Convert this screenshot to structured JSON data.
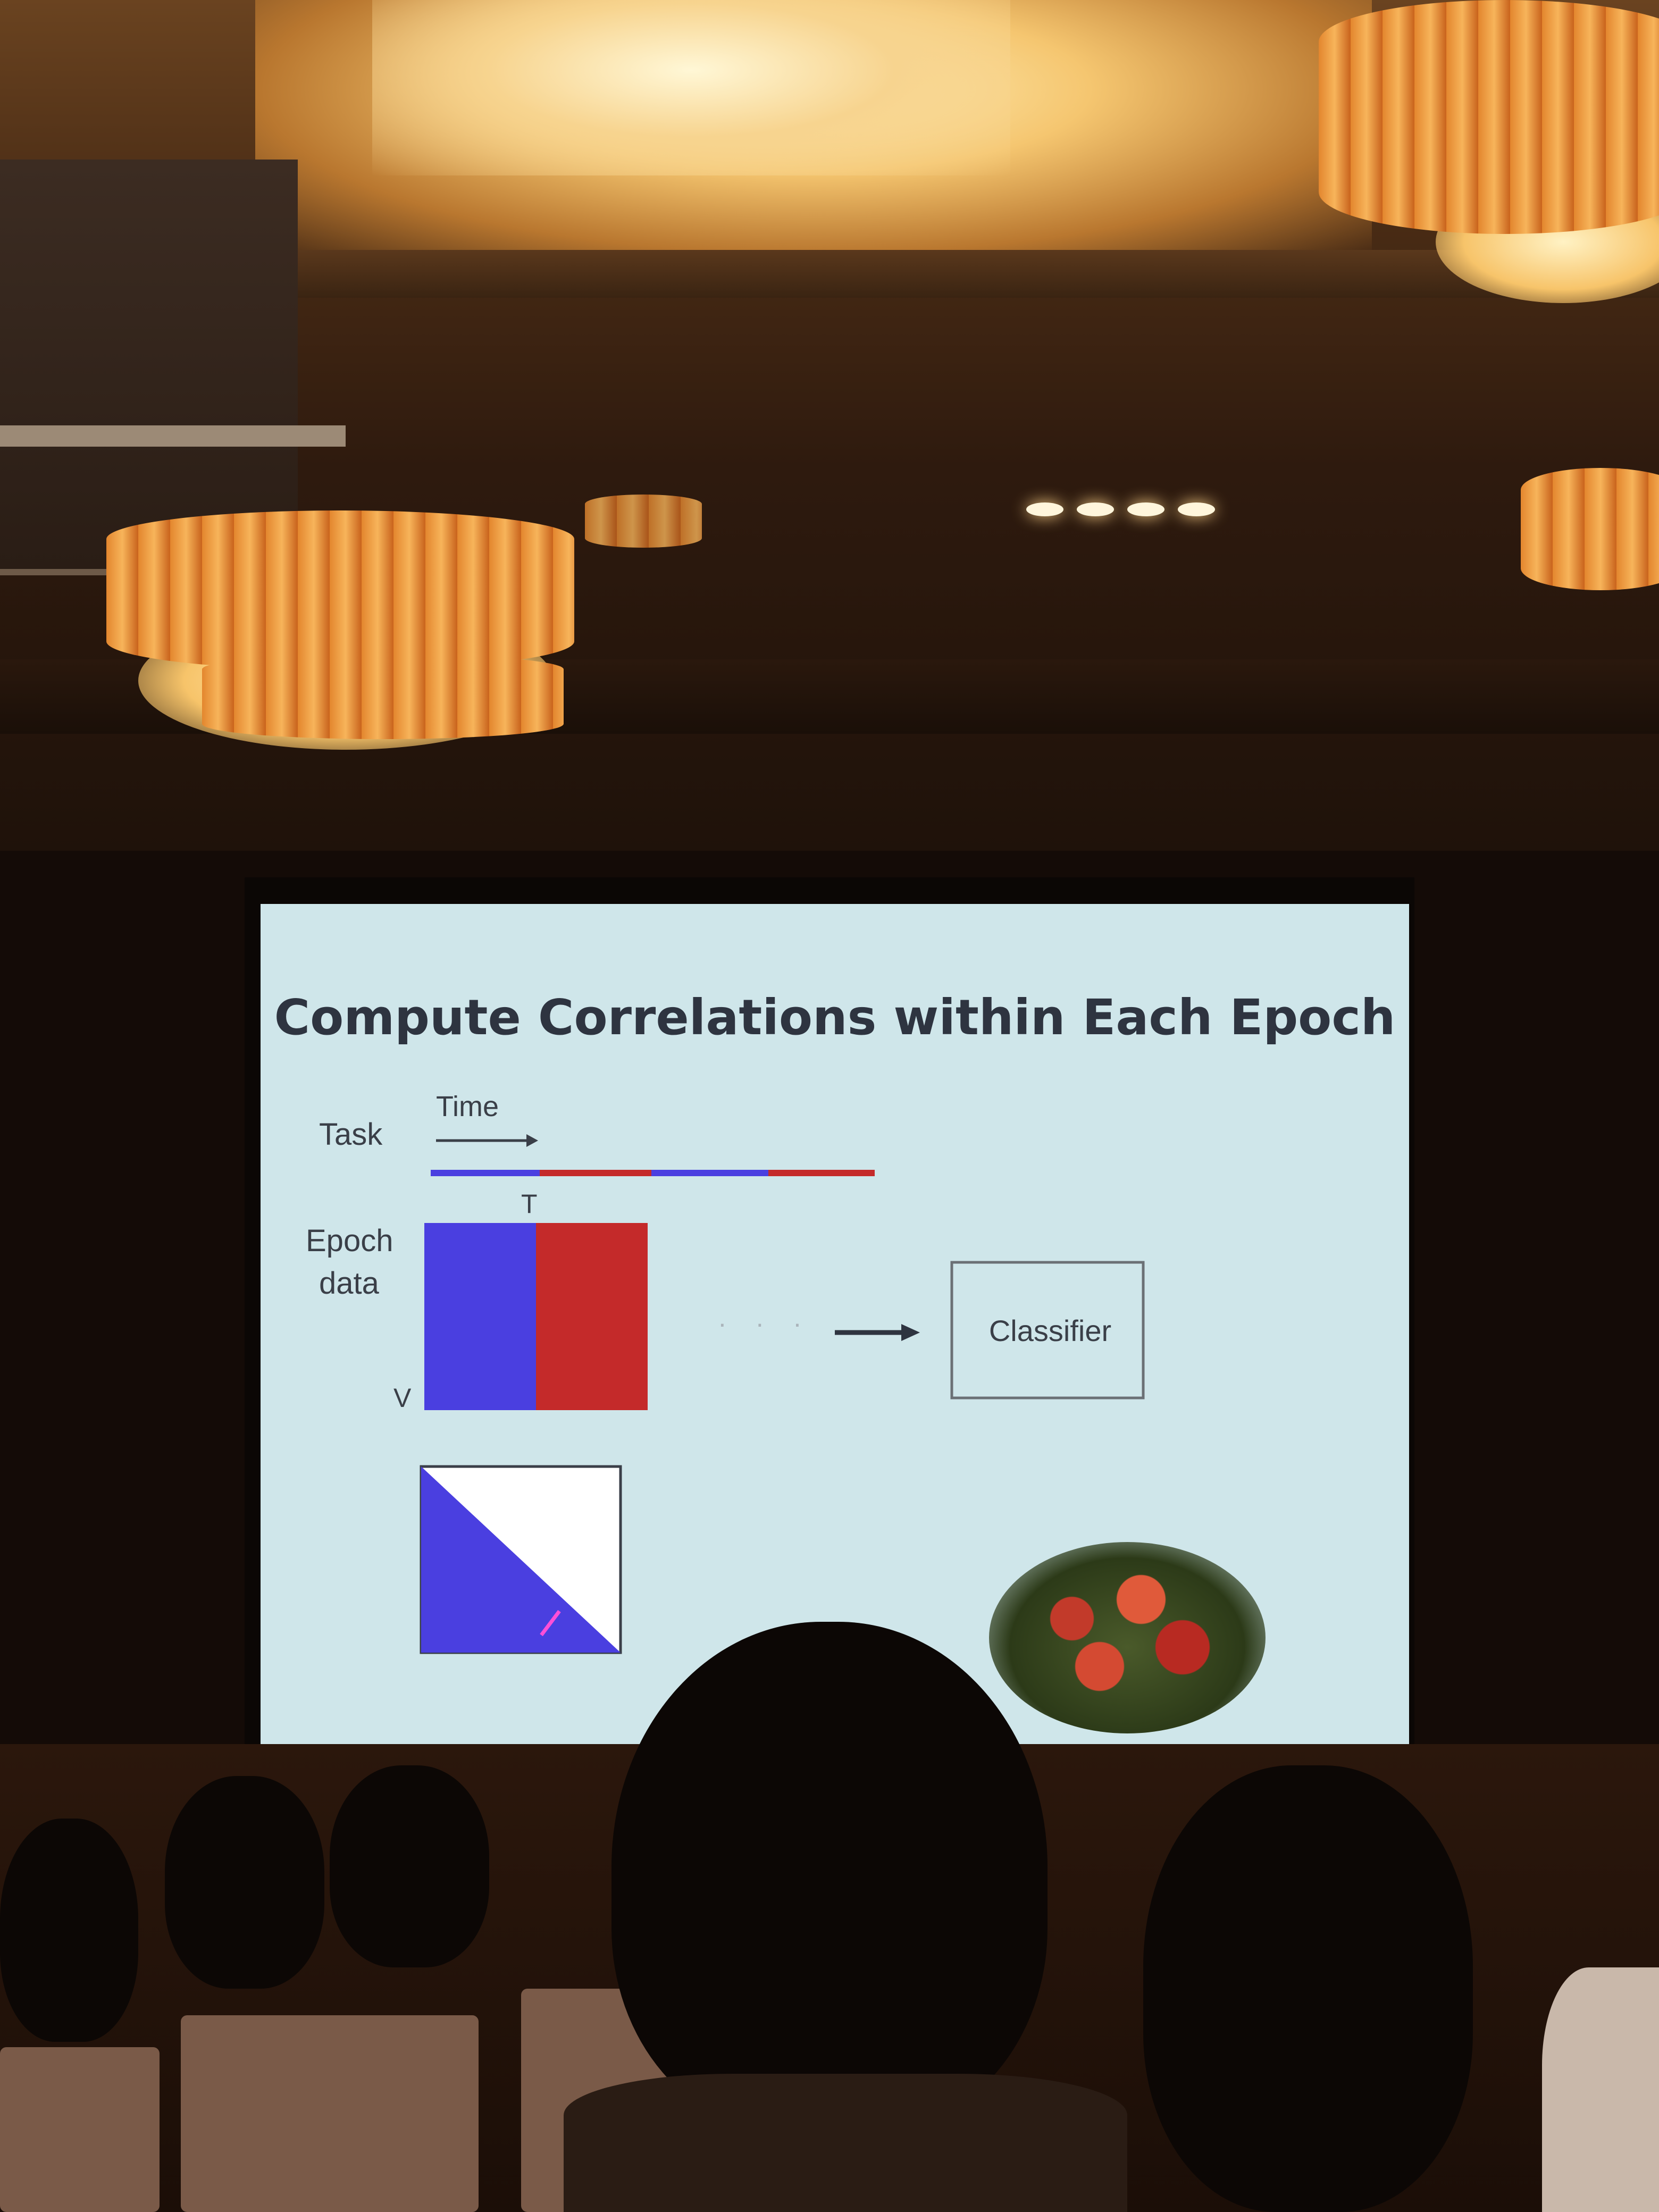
{
  "slide": {
    "title": "Compute Correlations within Each Epoch",
    "labels": {
      "task": "Task",
      "time": "Time",
      "epoch_line1": "Epoch",
      "epoch_line2": "data",
      "t_marker": "T",
      "v_marker": "V",
      "dots": "· · ·",
      "classifier": "Classifier"
    },
    "colors": {
      "blue": "#4a3fe0",
      "red": "#c42a2a",
      "screen": "#cfe6ea",
      "text": "#2e3440"
    }
  }
}
